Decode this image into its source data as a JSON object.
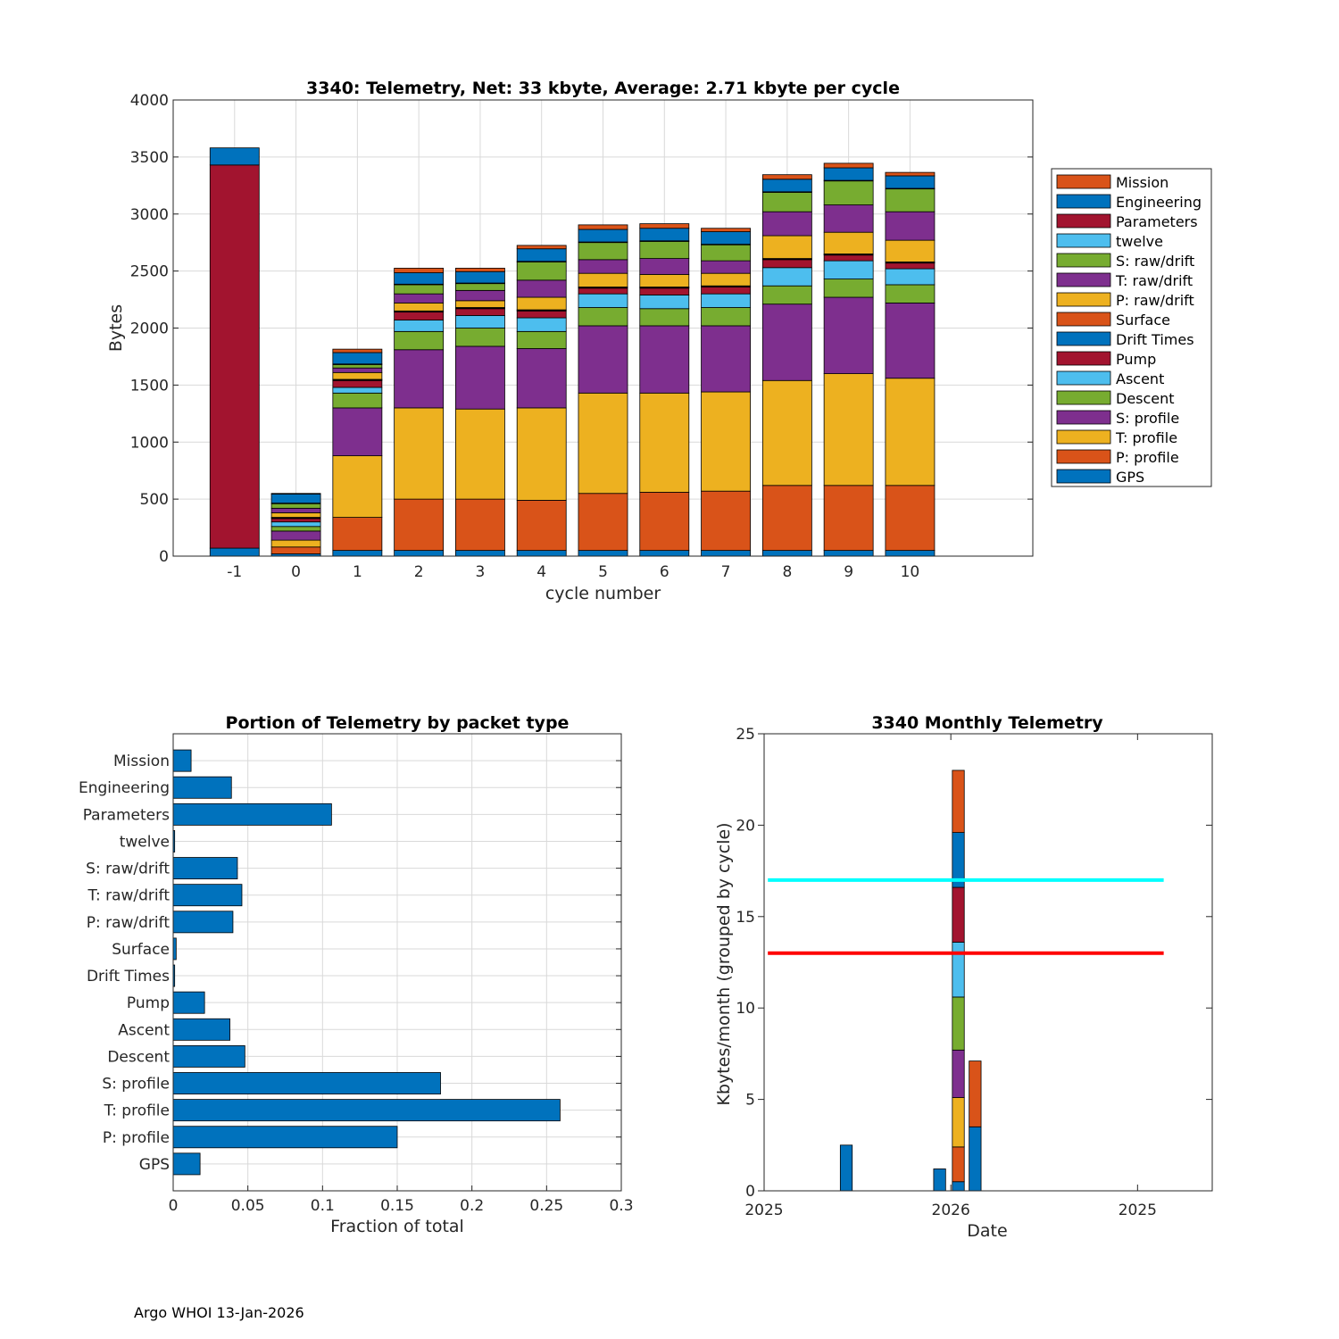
{
  "colors": {
    "Mission": "#D95319",
    "Engineering": "#0072BD",
    "Parameters": "#A2142F",
    "twelve": "#4DBEEE",
    "S: raw/drift": "#77AC30",
    "T: raw/drift": "#7E2F8E",
    "P: raw/drift": "#EDB120",
    "Surface": "#D95319",
    "Drift Times": "#0072BD",
    "Pump": "#A2142F",
    "Ascent": "#4DBEEE",
    "Descent": "#77AC30",
    "S: profile": "#7E2F8E",
    "T: profile": "#EDB120",
    "P: profile": "#D95319",
    "GPS": "#0072BD",
    "cyan_line": "#00FFFF",
    "red_line": "#FF0000"
  },
  "chart_data": [
    {
      "type": "bar",
      "stacked": true,
      "title": "3340: Telemetry, Net:     33 kbyte,  Average: 2.71 kbyte per cycle",
      "xlabel": "cycle number",
      "ylabel": "Bytes",
      "xlim": [
        -2,
        12
      ],
      "ylim": [
        0,
        4000
      ],
      "yticks": [
        0,
        500,
        1000,
        1500,
        2000,
        2500,
        3000,
        3500,
        4000
      ],
      "categories": [
        "-1",
        "0",
        "1",
        "2",
        "3",
        "4",
        "5",
        "6",
        "7",
        "8",
        "9",
        "10"
      ],
      "x": [
        -1,
        0,
        1,
        2,
        3,
        4,
        5,
        6,
        7,
        8,
        9,
        10
      ],
      "legend_position": "right",
      "series": [
        {
          "name": "GPS",
          "values": [
            70,
            20,
            50,
            50,
            50,
            50,
            50,
            50,
            50,
            50,
            50,
            50
          ]
        },
        {
          "name": "P: profile",
          "values": [
            0,
            60,
            290,
            450,
            450,
            440,
            500,
            510,
            520,
            570,
            570,
            570
          ]
        },
        {
          "name": "T: profile",
          "values": [
            0,
            60,
            540,
            800,
            790,
            810,
            880,
            870,
            870,
            920,
            980,
            940
          ]
        },
        {
          "name": "S: profile",
          "values": [
            0,
            80,
            420,
            510,
            550,
            520,
            590,
            590,
            580,
            670,
            670,
            660
          ]
        },
        {
          "name": "Descent",
          "values": [
            0,
            40,
            130,
            160,
            160,
            150,
            160,
            150,
            160,
            160,
            160,
            160
          ]
        },
        {
          "name": "Ascent",
          "values": [
            0,
            40,
            50,
            100,
            110,
            120,
            120,
            120,
            120,
            160,
            160,
            140
          ]
        },
        {
          "name": "Pump",
          "values": [
            0,
            30,
            60,
            70,
            60,
            60,
            50,
            60,
            60,
            70,
            50,
            50
          ]
        },
        {
          "name": "Drift Times",
          "values": [
            0,
            5,
            5,
            5,
            5,
            5,
            5,
            5,
            5,
            5,
            5,
            5
          ]
        },
        {
          "name": "Surface",
          "values": [
            0,
            5,
            5,
            5,
            5,
            5,
            5,
            5,
            5,
            5,
            5,
            5
          ]
        },
        {
          "name": "P: raw/drift",
          "values": [
            0,
            40,
            60,
            70,
            60,
            110,
            120,
            110,
            110,
            200,
            190,
            190
          ]
        },
        {
          "name": "T: raw/drift",
          "values": [
            0,
            40,
            40,
            80,
            90,
            150,
            120,
            140,
            110,
            210,
            240,
            250
          ]
        },
        {
          "name": "S: raw/drift",
          "values": [
            0,
            40,
            30,
            80,
            60,
            160,
            150,
            150,
            140,
            170,
            210,
            200
          ]
        },
        {
          "name": "twelve",
          "values": [
            0,
            5,
            5,
            5,
            5,
            5,
            5,
            5,
            5,
            5,
            5,
            5
          ]
        },
        {
          "name": "Parameters",
          "values": [
            3360,
            0,
            0,
            0,
            0,
            0,
            0,
            0,
            0,
            0,
            0,
            0
          ]
        },
        {
          "name": "Engineering",
          "values": [
            150,
            80,
            100,
            100,
            100,
            110,
            110,
            110,
            110,
            110,
            110,
            110
          ]
        },
        {
          "name": "Mission",
          "values": [
            0,
            5,
            30,
            40,
            30,
            30,
            40,
            40,
            30,
            40,
            40,
            30
          ]
        }
      ]
    },
    {
      "type": "bar",
      "orientation": "horizontal",
      "title": "Portion of Telemetry by packet type",
      "xlabel": "Fraction of total",
      "ylabel": "",
      "xlim": [
        0,
        0.3
      ],
      "xticks": [
        0,
        0.05,
        0.1,
        0.15,
        0.2,
        0.25,
        0.3
      ],
      "xtick_labels": [
        "0",
        "0.05",
        "0.1",
        "0.15",
        "0.2",
        "0.25",
        "0.3"
      ],
      "categories": [
        "GPS",
        "P: profile",
        "T: profile",
        "S: profile",
        "Descent",
        "Ascent",
        "Pump",
        "Drift Times",
        "Surface",
        "P: raw/drift",
        "T: raw/drift",
        "S: raw/drift",
        "twelve",
        "Parameters",
        "Engineering",
        "Mission"
      ],
      "values": [
        0.018,
        0.15,
        0.259,
        0.179,
        0.048,
        0.038,
        0.021,
        0.001,
        0.002,
        0.04,
        0.046,
        0.043,
        0.001,
        0.106,
        0.039,
        0.012
      ]
    },
    {
      "type": "bar",
      "stacked": true,
      "title": "3340 Monthly Telemetry",
      "xlabel": "Date",
      "ylabel": "Kbytes/month (grouped by cycle)",
      "ylim": [
        0,
        25
      ],
      "yticks": [
        0,
        5,
        10,
        15,
        20,
        25
      ],
      "xlim": [
        0,
        12
      ],
      "xticks": [
        0,
        5,
        10
      ],
      "xtick_labels": [
        "2025",
        "2026",
        "2025"
      ],
      "reference_lines": [
        {
          "name": "cyan",
          "value": 17,
          "x_range": [
            0.1,
            10.7
          ]
        },
        {
          "name": "red",
          "value": 13,
          "x_range": [
            0.1,
            10.7
          ]
        }
      ],
      "bars": [
        {
          "x": 2.2,
          "width": 0.32,
          "segments": [
            {
              "name": "GPS",
              "value": 2.5
            }
          ]
        },
        {
          "x": 4.7,
          "width": 0.32,
          "segments": [
            {
              "name": "GPS",
              "value": 1.2
            }
          ]
        },
        {
          "x": 5.2,
          "width": 0.32,
          "segments": [
            {
              "name": "GPS",
              "value": 0.5
            },
            {
              "name": "P: profile",
              "value": 1.9
            },
            {
              "name": "T: profile",
              "value": 2.7
            },
            {
              "name": "S: profile",
              "value": 2.6
            },
            {
              "name": "Descent",
              "value": 2.9
            },
            {
              "name": "Ascent",
              "value": 3.0
            },
            {
              "name": "Pump",
              "value": 3.0
            },
            {
              "name": "Engineering",
              "value": 3.0
            },
            {
              "name": "Mission",
              "value": 3.4
            }
          ]
        },
        {
          "x": 5.65,
          "width": 0.32,
          "segments": [
            {
              "name": "GPS",
              "value": 3.5
            },
            {
              "name": "Mission",
              "value": 3.6
            }
          ]
        }
      ]
    }
  ],
  "footer": "Argo WHOI 13-Jan-2026"
}
